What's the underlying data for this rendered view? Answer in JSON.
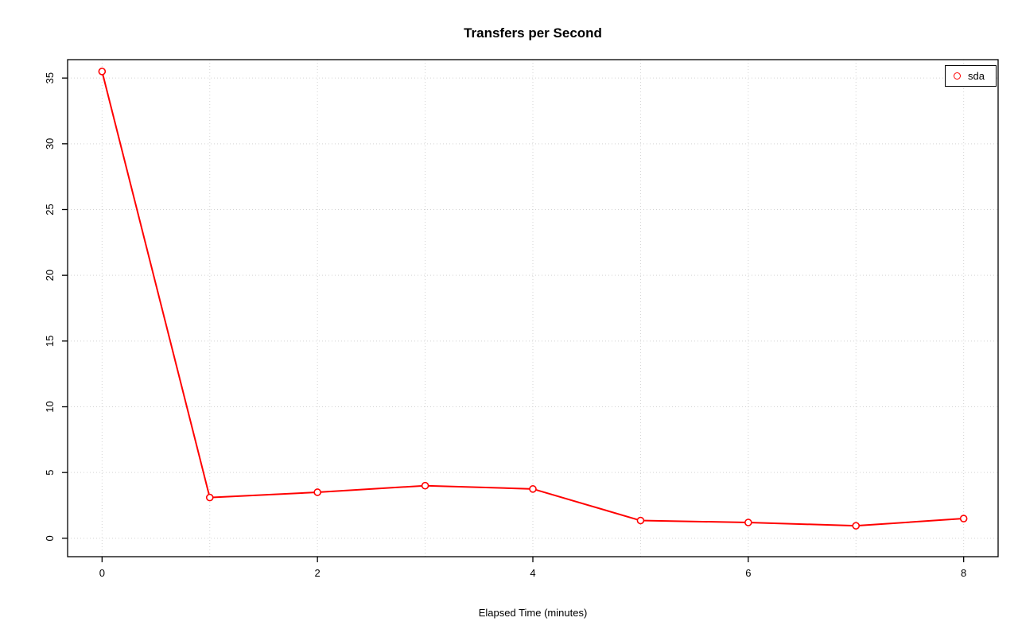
{
  "chart_data": {
    "type": "line",
    "title": "Transfers per Second",
    "xlabel": "Elapsed Time (minutes)",
    "ylabel": "",
    "x": [
      0,
      1,
      2,
      3,
      4,
      5,
      6,
      7,
      8
    ],
    "series": [
      {
        "name": "sda",
        "color": "#ff0000",
        "marker": "open-circle",
        "values": [
          35.5,
          3.1,
          3.5,
          4.0,
          3.75,
          1.35,
          1.2,
          0.95,
          1.5
        ]
      }
    ],
    "xlim": [
      0,
      8
    ],
    "ylim": [
      0,
      35
    ],
    "xticks": [
      0,
      2,
      4,
      6,
      8
    ],
    "yticks": [
      0,
      5,
      10,
      15,
      20,
      25,
      30,
      35
    ],
    "grid_x": [
      0,
      1,
      2,
      3,
      4,
      5,
      6,
      7,
      8
    ],
    "grid_y": [
      0,
      5,
      10,
      15,
      20,
      25,
      30,
      35
    ],
    "grid": true,
    "grid_color": "#d3d3d3",
    "axis_color": "#000000",
    "legend_position": "top-right"
  }
}
